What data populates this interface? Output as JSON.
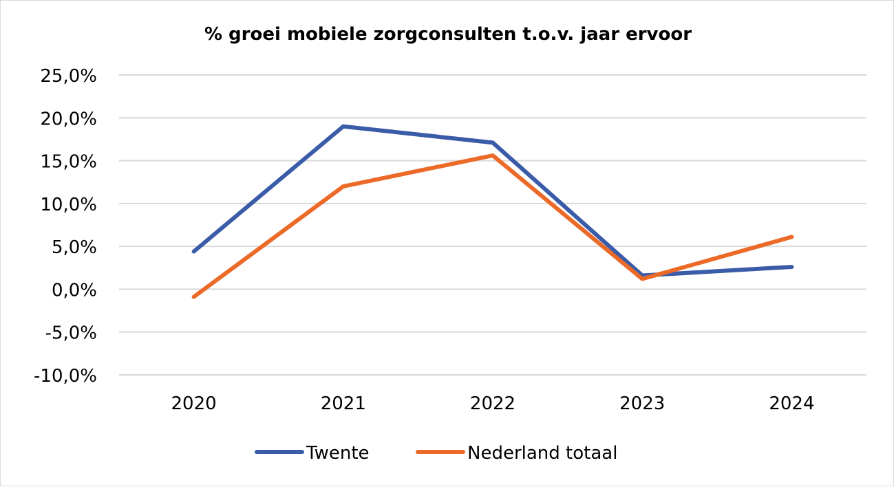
{
  "chart_data": {
    "type": "line",
    "title": "% groei mobiele zorgconsulten t.o.v. jaar ervoor",
    "xlabel": "",
    "ylabel": "",
    "categories": [
      "2020",
      "2021",
      "2022",
      "2023",
      "2024"
    ],
    "ylim": [
      -10,
      25
    ],
    "yticks": [
      25,
      20,
      15,
      10,
      5,
      0,
      -5,
      -10
    ],
    "ytick_labels": [
      "25,0%",
      "20,0%",
      "15,0%",
      "10,0%",
      "5,0%",
      "0,0%",
      "-5,0%",
      "-10,0%"
    ],
    "grid": true,
    "legend": "bottom",
    "series": [
      {
        "name": "Twente",
        "color": "#3a5ca8",
        "values": [
          4.4,
          19.0,
          17.1,
          1.6,
          2.6
        ]
      },
      {
        "name": "Nederland totaal",
        "color": "#ec6a28",
        "values": [
          -0.9,
          12.0,
          15.6,
          1.2,
          6.1
        ]
      }
    ]
  }
}
